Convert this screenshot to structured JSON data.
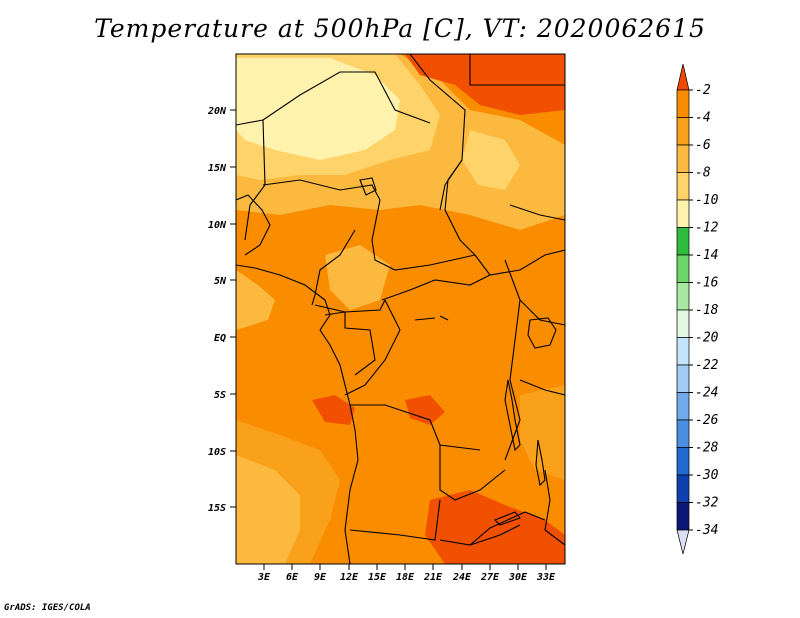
{
  "title": "Temperature at 500hPa [C], VT: 2020062615",
  "credit": "GrADS: IGES/COLA",
  "map": {
    "lat_labels": [
      "20N",
      "15N",
      "10N",
      "5N",
      "EQ",
      "5S",
      "10S",
      "15S"
    ],
    "lon_labels": [
      "3E",
      "6E",
      "9E",
      "12E",
      "15E",
      "18E",
      "21E",
      "24E",
      "27E",
      "30E",
      "33E"
    ],
    "colors": {
      "warmest": "#f05000",
      "warm": "#fa8c00",
      "mid": "#f9a11a",
      "cool": "#fcb940",
      "cooler": "#fdd36a",
      "coolest": "#fef2ad",
      "border": "#000000"
    }
  },
  "colorbar": {
    "labels": [
      "-2",
      "-4",
      "-6",
      "-8",
      "-10",
      "-12",
      "-14",
      "-16",
      "-18",
      "-20",
      "-22",
      "-24",
      "-26",
      "-28",
      "-30",
      "-32",
      "-34"
    ],
    "colors": [
      "#f05000",
      "#fa8c00",
      "#f9a11a",
      "#fcb940",
      "#fdd36a",
      "#fef2ad",
      "#2dbc3c",
      "#6bd66a",
      "#a8e8a0",
      "#e2f8e2",
      "#c4e4fb",
      "#a2cdf5",
      "#72aaeb",
      "#4a8fe1",
      "#2269d0",
      "#0f40b0",
      "#0b1875"
    ],
    "top_color": "#f04a00",
    "bottom_color": "#dde0f5"
  }
}
